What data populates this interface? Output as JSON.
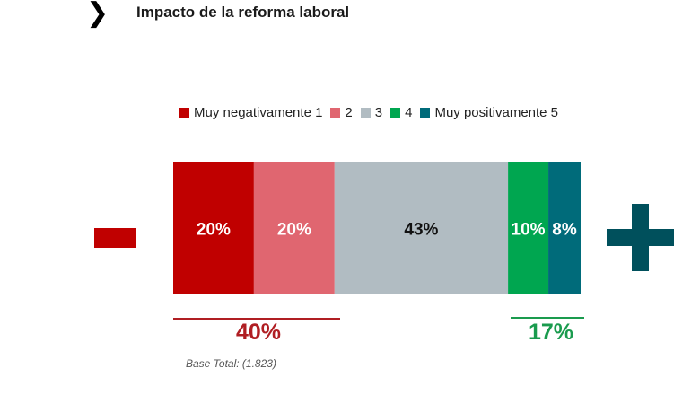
{
  "header": {
    "chevron": "❯",
    "title": "Impacto de la reforma laboral"
  },
  "colors": {
    "s1": "#c00000",
    "s2": "#e06670",
    "s3": "#b1bcc2",
    "s4": "#00a650",
    "s5": "#006b7a",
    "neg_accent": "#b01e23",
    "pos_accent": "#1a9b4e",
    "sign": "#00505c"
  },
  "chart_data": {
    "type": "bar",
    "orientation": "horizontal-stacked",
    "series": [
      {
        "name": "Muy negativamente 1",
        "value": 20,
        "label": "20%"
      },
      {
        "name": "2",
        "value": 20,
        "label": "20%"
      },
      {
        "name": "3",
        "value": 43,
        "label": "43%"
      },
      {
        "name": "4",
        "value": 10,
        "label": "10%"
      },
      {
        "name": "Muy positivamente 5",
        "value": 8,
        "label": "8%"
      }
    ],
    "legend_position": "top",
    "negative_total": "40%",
    "positive_total": "17%"
  },
  "footer": {
    "base": "Base Total: (1.823)"
  },
  "icons": {
    "left": "minus-icon",
    "right": "plus-icon"
  }
}
